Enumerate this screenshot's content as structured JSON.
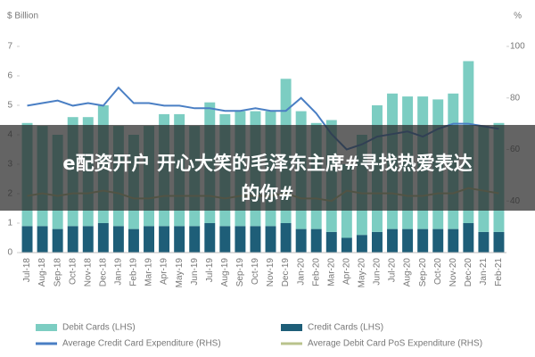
{
  "chart_data": {
    "type": "bar",
    "ylabel": "$ Billion",
    "y2label": "%",
    "categories": [
      "Jul-18",
      "Aug-18",
      "Sep-18",
      "Oct-18",
      "Nov-18",
      "Dec-18",
      "Jan-19",
      "Feb-19",
      "Mar-19",
      "Apr-19",
      "May-19",
      "Jun-19",
      "Jul-19",
      "Aug-19",
      "Sep-19",
      "Oct-19",
      "Nov-19",
      "Dec-19",
      "Jan-20",
      "Feb-20",
      "Mar-20",
      "Apr-20",
      "May-20",
      "Jun-20",
      "Jul-20",
      "Aug-20",
      "Sep-20",
      "Oct-20",
      "Nov-20",
      "Dec-20",
      "Jan-21",
      "Feb-21"
    ],
    "stacked": true,
    "series": [
      {
        "name": "Credit Cards (LHS)",
        "color": "#1e5e78",
        "values": [
          0.9,
          0.9,
          0.8,
          0.9,
          0.9,
          1.0,
          0.9,
          0.8,
          0.9,
          0.9,
          0.9,
          0.9,
          1.0,
          0.9,
          0.9,
          0.9,
          0.9,
          1.0,
          0.8,
          0.8,
          0.7,
          0.5,
          0.6,
          0.7,
          0.8,
          0.8,
          0.8,
          0.8,
          0.8,
          1.0,
          0.7,
          0.7
        ]
      },
      {
        "name": "Debit Cards (LHS)",
        "color": "#7ccdc2",
        "values": [
          3.5,
          3.4,
          3.2,
          3.7,
          3.7,
          4.0,
          3.4,
          3.2,
          3.4,
          3.8,
          3.8,
          3.4,
          4.1,
          3.8,
          3.9,
          3.9,
          3.9,
          4.9,
          4.0,
          3.6,
          3.8,
          2.5,
          3.4,
          4.3,
          4.6,
          4.5,
          4.5,
          4.4,
          4.6,
          5.5,
          3.6,
          3.7
        ]
      },
      {
        "name": "Average Credit Card Expenditure (RHS)",
        "color": "#4a7fc4",
        "type": "line",
        "axis": "y2",
        "values": [
          77,
          78,
          79,
          77,
          78,
          77,
          84,
          78,
          78,
          77,
          77,
          76,
          76,
          75,
          75,
          76,
          75,
          75,
          80,
          74,
          66,
          60,
          62,
          65,
          66,
          67,
          65,
          68,
          70,
          70,
          69,
          68
        ]
      },
      {
        "name": "Average Debit Card PoS Expenditure (RHS)",
        "color": "#b9c38c",
        "type": "line",
        "axis": "y2",
        "values": [
          42,
          43,
          42,
          43,
          43,
          44,
          43,
          41,
          41,
          42,
          42,
          42,
          42,
          41,
          42,
          42,
          42,
          43,
          41,
          41,
          40,
          44,
          43,
          43,
          43,
          42,
          42,
          43,
          43,
          45,
          44,
          43
        ]
      }
    ],
    "ylim": [
      0,
      7
    ],
    "yticks": [
      0,
      1,
      2,
      3,
      4,
      5,
      6,
      7
    ],
    "y2lim": [
      20,
      100
    ],
    "y2ticks": [
      40,
      60,
      80,
      100
    ],
    "banner": "e配资开户 开心大笑的毛泽东主席#寻找热爱表达的你#"
  }
}
